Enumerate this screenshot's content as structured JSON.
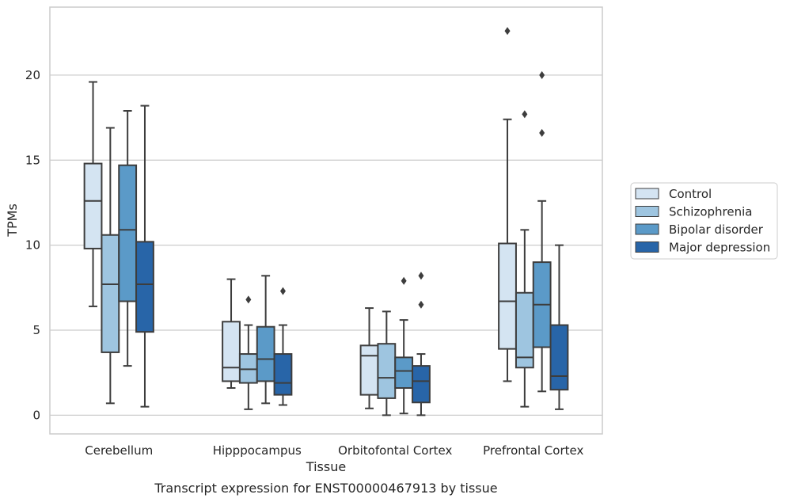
{
  "caption": "Transcript expression for ENST00000467913 by tissue",
  "chart_data": {
    "type": "box",
    "xlabel": "Tissue",
    "ylabel": "TPMs",
    "ylim": [
      -1.1,
      24
    ],
    "yticks": [
      0,
      5,
      10,
      15,
      20
    ],
    "ytick_labels": [
      "0",
      "5",
      "10",
      "15",
      "20"
    ],
    "grid": "horizontal",
    "legend_placement": "right",
    "categories": [
      "Cerebellum",
      "Hipppocampus",
      "Orbitofontal Cortex",
      "Prefrontal Cortex"
    ],
    "series": [
      {
        "name": "Control",
        "color": "#d4e4f2",
        "boxes": [
          {
            "whislo": 6.4,
            "q1": 9.8,
            "med": 12.6,
            "q3": 14.8,
            "whishi": 19.6,
            "fliers": []
          },
          {
            "whislo": 1.6,
            "q1": 2.0,
            "med": 2.8,
            "q3": 5.5,
            "whishi": 8.0,
            "fliers": []
          },
          {
            "whislo": 0.4,
            "q1": 1.2,
            "med": 3.5,
            "q3": 4.1,
            "whishi": 6.3,
            "fliers": []
          },
          {
            "whislo": 2.0,
            "q1": 3.9,
            "med": 6.7,
            "q3": 10.1,
            "whishi": 17.4,
            "fliers": [
              22.6
            ]
          }
        ]
      },
      {
        "name": "Schizophrenia",
        "color": "#9ec5e0",
        "boxes": [
          {
            "whislo": 0.7,
            "q1": 3.7,
            "med": 7.7,
            "q3": 10.6,
            "whishi": 16.9,
            "fliers": []
          },
          {
            "whislo": 0.35,
            "q1": 1.9,
            "med": 2.7,
            "q3": 3.6,
            "whishi": 5.3,
            "fliers": [
              6.8
            ]
          },
          {
            "whislo": 0.0,
            "q1": 1.0,
            "med": 2.2,
            "q3": 4.2,
            "whishi": 6.1,
            "fliers": []
          },
          {
            "whislo": 0.5,
            "q1": 2.8,
            "med": 3.4,
            "q3": 7.2,
            "whishi": 10.9,
            "fliers": [
              17.7
            ]
          }
        ]
      },
      {
        "name": "Bipolar disorder",
        "color": "#5b9ac8",
        "boxes": [
          {
            "whislo": 2.9,
            "q1": 6.7,
            "med": 10.9,
            "q3": 14.7,
            "whishi": 17.9,
            "fliers": []
          },
          {
            "whislo": 0.7,
            "q1": 2.0,
            "med": 3.3,
            "q3": 5.2,
            "whishi": 8.2,
            "fliers": []
          },
          {
            "whislo": 0.1,
            "q1": 1.6,
            "med": 2.6,
            "q3": 3.4,
            "whishi": 5.6,
            "fliers": [
              7.9
            ]
          },
          {
            "whislo": 1.4,
            "q1": 4.0,
            "med": 6.5,
            "q3": 9.0,
            "whishi": 12.6,
            "fliers": [
              16.6,
              20.0
            ]
          }
        ]
      },
      {
        "name": "Major depression",
        "color": "#2865a8",
        "boxes": [
          {
            "whislo": 0.5,
            "q1": 4.9,
            "med": 7.7,
            "q3": 10.2,
            "whishi": 18.2,
            "fliers": []
          },
          {
            "whislo": 0.6,
            "q1": 1.2,
            "med": 1.9,
            "q3": 3.6,
            "whishi": 5.3,
            "fliers": [
              7.3
            ]
          },
          {
            "whislo": 0.0,
            "q1": 0.75,
            "med": 2.0,
            "q3": 2.9,
            "whishi": 3.6,
            "fliers": [
              6.5,
              8.2
            ]
          },
          {
            "whislo": 0.35,
            "q1": 1.5,
            "med": 2.3,
            "q3": 5.3,
            "whishi": 10.0,
            "fliers": []
          }
        ]
      }
    ]
  }
}
